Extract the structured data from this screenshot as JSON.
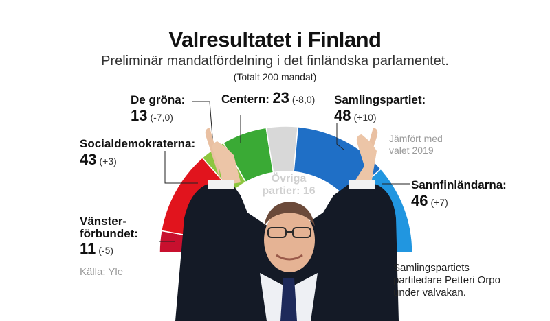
{
  "title": "Valresultatet i Finland",
  "subtitle": "Preliminär mandatfördelning i det finländska parlamentet.",
  "total": "(Totalt 200 mandat)",
  "source": "Källa: Yle",
  "comparison_note": [
    "Jämfört med",
    "valet 2019"
  ],
  "photo_caption": [
    "Samlingspartiets",
    "partiledare Petteri Orpo",
    "under valvakan."
  ],
  "colors": {
    "vansterforbundet": "#c8102e",
    "socialdemokraterna": "#e1141d",
    "de_grona": "#8cc63f",
    "centern": "#3aaa35",
    "ovriga": "#d8d8d8",
    "samlingspartiet": "#1f6fc6",
    "sannfinlandarna": "#2196e0"
  },
  "labels": {
    "vanster": {
      "name1": "Vänster-",
      "name2": "förbundet:",
      "seats": "11",
      "change": "(-5)"
    },
    "sdp": {
      "name": "Socialdemokraterna:",
      "seats": "43",
      "change": "(+3)"
    },
    "grona": {
      "name": "De gröna:",
      "seats": "13",
      "change": "(-7,0)"
    },
    "centern": {
      "name": "Centern:",
      "seats": "23",
      "change": "(-8,0)"
    },
    "samling": {
      "name": "Samlingspartiet:",
      "seats": "48",
      "change": "(+10)"
    },
    "sannf": {
      "name": "Sannfinländarna:",
      "seats": "46",
      "change": "(+7)"
    },
    "ovriga": {
      "name1": "Övriga",
      "name2": "partier: 16"
    }
  },
  "chart_data": {
    "type": "pie",
    "variant": "parliament semicircle",
    "title": "Valresultatet i Finland",
    "total_seats": 200,
    "categories": [
      "Vänsterförbundet",
      "Socialdemokraterna",
      "De gröna",
      "Centern",
      "Övriga partier",
      "Samlingspartiet",
      "Sannfinländarna"
    ],
    "values": [
      11,
      43,
      13,
      23,
      16,
      48,
      46
    ],
    "changes": [
      -5,
      3,
      -7.0,
      -8.0,
      null,
      10,
      7
    ],
    "colors": [
      "#c8102e",
      "#e1141d",
      "#8cc63f",
      "#3aaa35",
      "#d8d8d8",
      "#1f6fc6",
      "#2196e0"
    ]
  }
}
